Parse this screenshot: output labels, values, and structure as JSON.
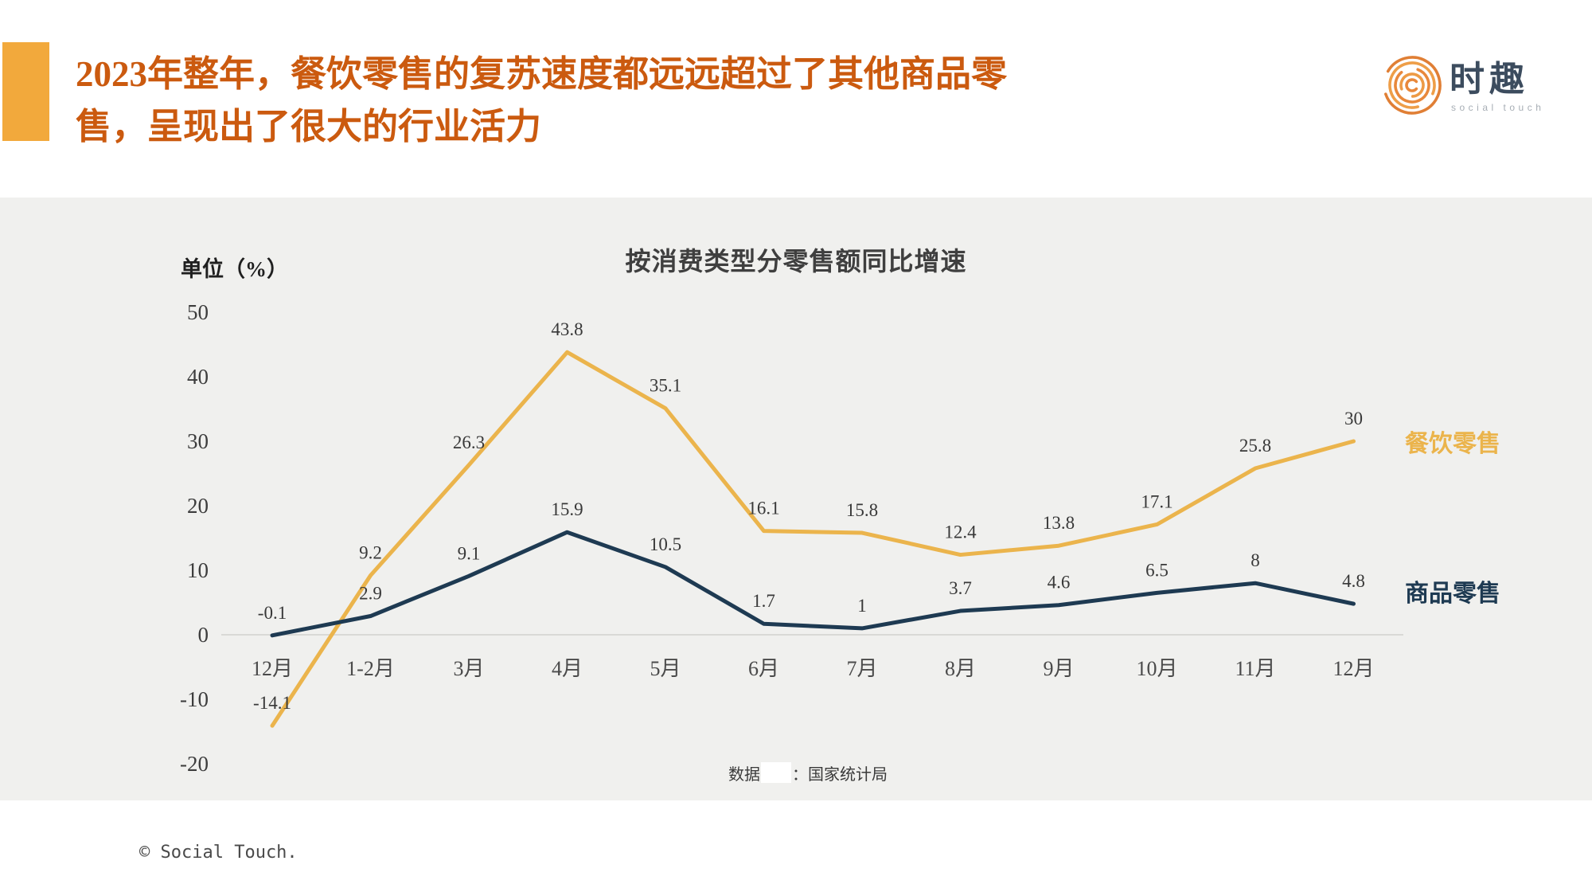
{
  "header": {
    "title": "2023年整年，餐饮零售的复苏速度都远远超过了其他商品零售，呈现出了很大的行业活力",
    "accent_color": "#F2A93C",
    "title_color": "#CB5A0F"
  },
  "logo": {
    "name": "时趣",
    "subtitle": "social touch",
    "ring_color": "#E8883B"
  },
  "chart_data": {
    "type": "line",
    "title": "按消费类型分零售额同比增速",
    "unit_label": "单位（%）",
    "categories": [
      "12月",
      "1-2月",
      "3月",
      "4月",
      "5月",
      "6月",
      "7月",
      "8月",
      "9月",
      "10月",
      "11月",
      "12月"
    ],
    "series": [
      {
        "name": "餐饮零售",
        "color": "#EBB44C",
        "values": [
          -14.1,
          9.2,
          26.3,
          43.8,
          35.1,
          16.1,
          15.8,
          12.4,
          13.8,
          17.1,
          25.8,
          30
        ]
      },
      {
        "name": "商品零售",
        "color": "#1E3A52",
        "values": [
          -0.1,
          2.9,
          9.1,
          15.9,
          10.5,
          1.7,
          1,
          3.7,
          4.6,
          6.5,
          8,
          4.8
        ]
      }
    ],
    "yticks": [
      50,
      40,
      30,
      20,
      10,
      0,
      -10,
      -20
    ],
    "ylim": [
      -20,
      50
    ],
    "grid": "zero-line-only",
    "legend_position": "right-of-line-ends",
    "background": "#F0F0EE"
  },
  "source": {
    "prefix": "数据",
    "suffix": "：国家统计局"
  },
  "footer": {
    "copyright": "© Social Touch."
  }
}
